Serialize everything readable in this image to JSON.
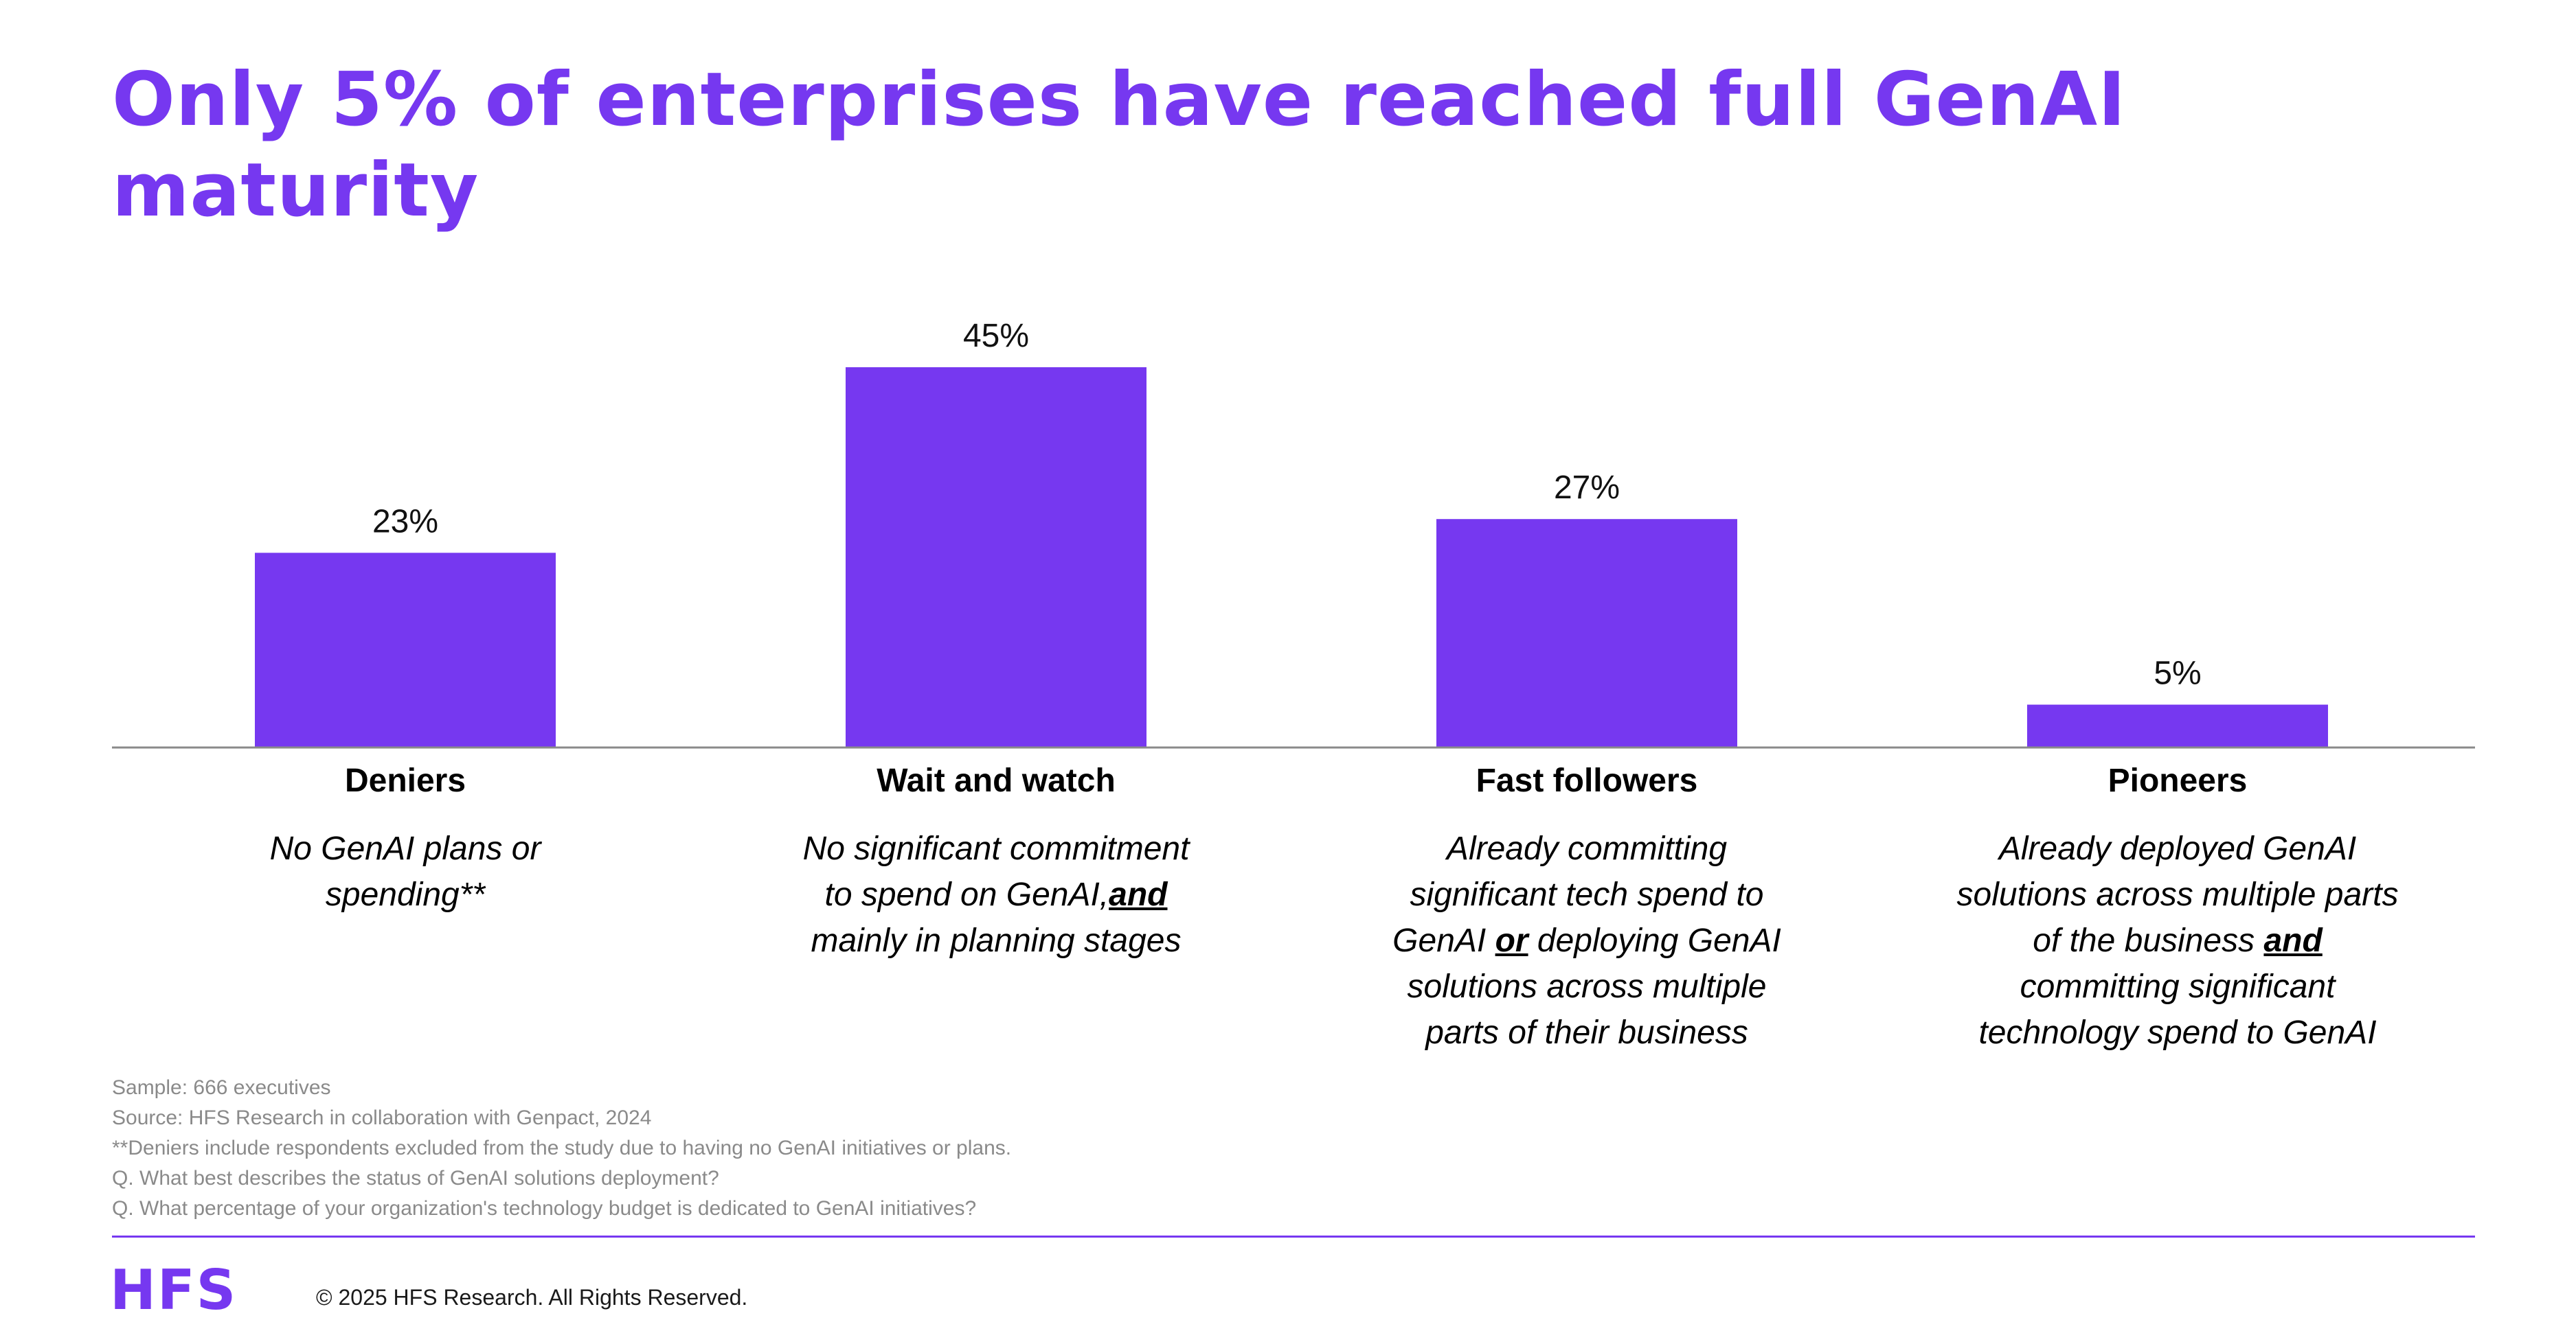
{
  "title": "Only 5% of enterprises have reached full GenAI maturity",
  "colors": {
    "accent": "#7638f0",
    "axis": "#8a8a8a",
    "note": "#8a8a8a"
  },
  "chart_data": {
    "type": "bar",
    "categories": [
      "Deniers",
      "Wait and watch",
      "Fast followers",
      "Pioneers"
    ],
    "values": [
      23,
      45,
      27,
      5
    ],
    "data_labels": [
      "23%",
      "45%",
      "27%",
      "5%"
    ],
    "ylim": [
      0,
      50
    ],
    "grid": false,
    "legend": "none",
    "descriptions": [
      {
        "lines": [
          [
            {
              "t": "No GenAI plans or"
            }
          ],
          [
            {
              "t": "spending**"
            }
          ]
        ]
      },
      {
        "lines": [
          [
            {
              "t": "No significant commitment"
            }
          ],
          [
            {
              "t": "to spend on GenAI,"
            },
            {
              "t": "and",
              "b": true
            }
          ],
          [
            {
              "t": "mainly in planning stages"
            }
          ]
        ]
      },
      {
        "lines": [
          [
            {
              "t": "Already committing"
            }
          ],
          [
            {
              "t": "significant tech spend to"
            }
          ],
          [
            {
              "t": "GenAI "
            },
            {
              "t": "or",
              "b": true
            },
            {
              "t": " deploying GenAI"
            }
          ],
          [
            {
              "t": "solutions across multiple"
            }
          ],
          [
            {
              "t": "parts of their business"
            }
          ]
        ]
      },
      {
        "lines": [
          [
            {
              "t": "Already deployed GenAI"
            }
          ],
          [
            {
              "t": "solutions across multiple parts"
            }
          ],
          [
            {
              "t": "of the business "
            },
            {
              "t": "and",
              "b": true
            }
          ],
          [
            {
              "t": "committing significant"
            }
          ],
          [
            {
              "t": "technology spend to GenAI"
            }
          ]
        ]
      }
    ]
  },
  "notes": [
    "Sample: 666 executives",
    "Source: HFS Research in collaboration with Genpact, 2024",
    "**Deniers include respondents excluded from the study due to having no GenAI initiatives or plans.",
    "Q. What best describes the status of GenAI solutions deployment?",
    "Q. What percentage of your organization's technology budget is dedicated to GenAI initiatives?"
  ],
  "footer": {
    "logo": "HFS",
    "copyright": "© 2025 HFS Research. All Rights Reserved."
  }
}
